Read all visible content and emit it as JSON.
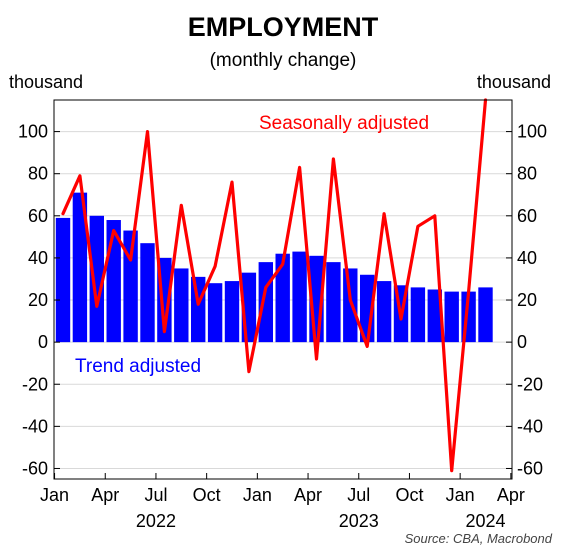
{
  "chart_data": {
    "type": "bar+line",
    "title": "EMPLOYMENT",
    "subtitle": "(monthly change)",
    "y_unit_left": "thousand",
    "y_unit_right": "thousand",
    "ylim": [
      -65,
      115
    ],
    "yticks": [
      100,
      80,
      60,
      40,
      20,
      0,
      -20,
      -40,
      -60
    ],
    "x_month_ticks": [
      "Jan",
      "Apr",
      "Jul",
      "Oct",
      "Jan",
      "Apr",
      "Jul",
      "Oct",
      "Jan",
      "Apr"
    ],
    "x_year_labels": [
      "2022",
      "2023",
      "2024"
    ],
    "source": "Source: CBA, Macrobond",
    "series": [
      {
        "name": "Trend adjusted",
        "kind": "bar",
        "color": "#0000ff",
        "values": [
          59,
          71,
          60,
          58,
          53,
          47,
          40,
          35,
          31,
          28,
          29,
          33,
          38,
          42,
          43,
          41,
          38,
          35,
          32,
          29,
          27,
          26,
          25,
          24,
          24,
          26
        ]
      },
      {
        "name": "Seasonally adjusted",
        "kind": "line",
        "color": "#ff0000",
        "values": [
          61,
          79,
          17,
          53,
          39,
          100,
          5,
          65,
          18,
          36,
          76,
          -14,
          26,
          37,
          83,
          -8,
          87,
          20,
          -2,
          61,
          11,
          55,
          60,
          -61,
          24,
          115
        ]
      }
    ]
  }
}
